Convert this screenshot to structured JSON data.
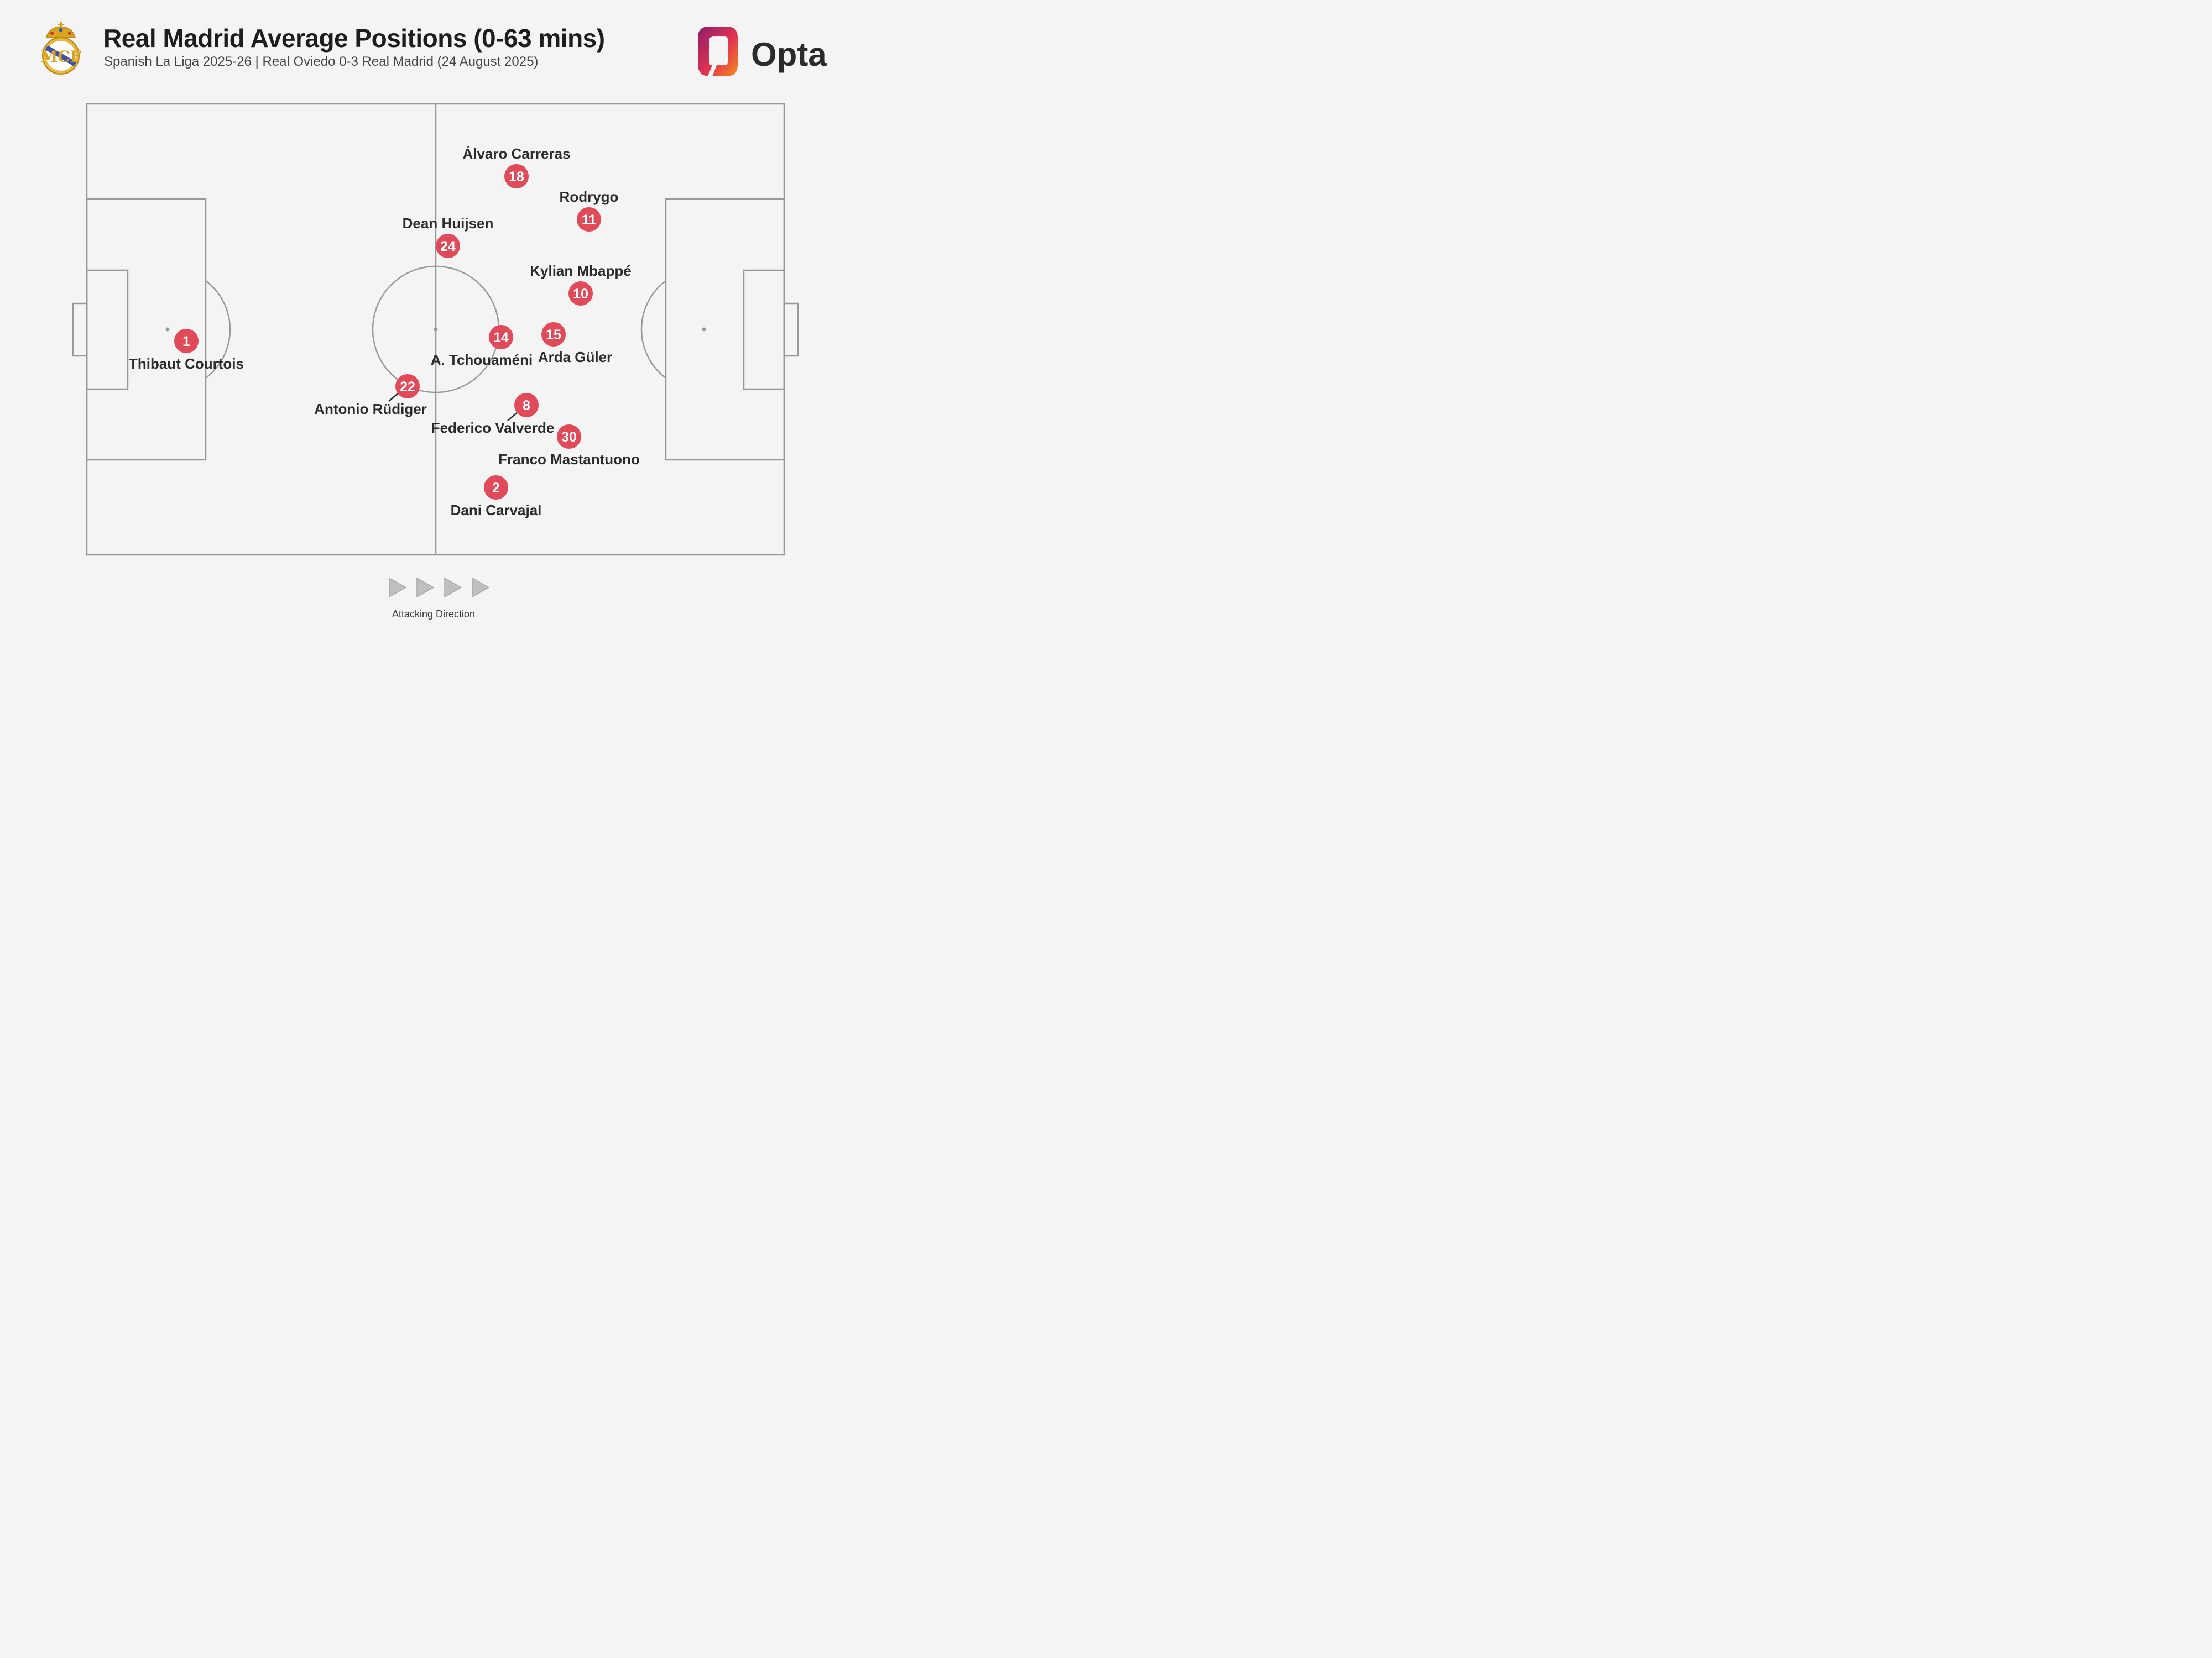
{
  "header": {
    "title": "Real Madrid Average Positions (0-63 mins)",
    "subtitle": "Spanish La Liga 2025-26 | Real Oviedo 0-3 Real Madrid (24 August 2025)",
    "logo_text": "Opta",
    "crest_icon": "real-madrid-crest-icon"
  },
  "colors": {
    "marker": "#e04a59",
    "pitch_lines": "#999999",
    "background": "#f4f4f4",
    "opta_gradient": [
      "#8a1d6b",
      "#e0334f",
      "#f58a1f"
    ]
  },
  "players": [
    {
      "number": "1",
      "name": "Thibaut Courtois",
      "label": "below"
    },
    {
      "number": "18",
      "name": "Álvaro Carreras",
      "label": "above"
    },
    {
      "number": "11",
      "name": "Rodrygo",
      "label": "above"
    },
    {
      "number": "24",
      "name": "Dean Huijsen",
      "label": "above"
    },
    {
      "number": "10",
      "name": "Kylian Mbappé",
      "label": "above"
    },
    {
      "number": "14",
      "name": "A. Tchouaméni",
      "label": "below"
    },
    {
      "number": "15",
      "name": "Arda Güler",
      "label": "below"
    },
    {
      "number": "22",
      "name": "Antonio Rüdiger",
      "label": "below-left"
    },
    {
      "number": "8",
      "name": "Federico Valverde",
      "label": "below-left"
    },
    {
      "number": "30",
      "name": "Franco Mastantuono",
      "label": "below"
    },
    {
      "number": "2",
      "name": "Dani Carvajal",
      "label": "below"
    }
  ],
  "footer": {
    "direction_label": "Attacking Direction",
    "direction_icon": "play-arrow-icon",
    "arrow_count": 4
  }
}
